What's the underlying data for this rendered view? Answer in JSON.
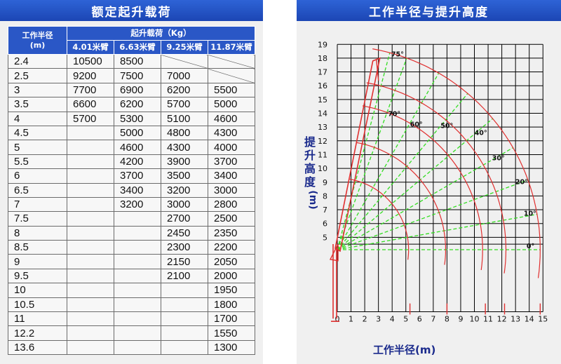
{
  "left_title": "额定起升载荷",
  "right_title": "工作半径与提升高度",
  "table": {
    "radius_header_line1": "工作半径",
    "radius_header_line2": "(m)",
    "load_header": "起升载荷（Kg）",
    "booms": [
      "4.01米臂",
      "6.63米臂",
      "9.25米臂",
      "11.87米臂"
    ],
    "rows": [
      {
        "r": "2.4",
        "v": [
          "10500",
          "8500",
          "",
          ""
        ]
      },
      {
        "r": "2.5",
        "v": [
          "9200",
          "7500",
          "7000",
          ""
        ]
      },
      {
        "r": "3",
        "v": [
          "7700",
          "6900",
          "6200",
          "5500"
        ]
      },
      {
        "r": "3.5",
        "v": [
          "6600",
          "6200",
          "5700",
          "5000"
        ]
      },
      {
        "r": "4",
        "v": [
          "5700",
          "5300",
          "5100",
          "4600"
        ]
      },
      {
        "r": "4.5",
        "v": [
          "",
          "5000",
          "4800",
          "4300"
        ]
      },
      {
        "r": "5",
        "v": [
          "",
          "4600",
          "4300",
          "4000"
        ]
      },
      {
        "r": "5.5",
        "v": [
          "",
          "4200",
          "3900",
          "3700"
        ]
      },
      {
        "r": "6",
        "v": [
          "",
          "3700",
          "3500",
          "3400"
        ]
      },
      {
        "r": "6.5",
        "v": [
          "",
          "3400",
          "3200",
          "3000"
        ]
      },
      {
        "r": "7",
        "v": [
          "",
          "3200",
          "3000",
          "2800"
        ]
      },
      {
        "r": "7.5",
        "v": [
          "",
          "",
          "2700",
          "2500"
        ]
      },
      {
        "r": "8",
        "v": [
          "",
          "",
          "2450",
          "2350"
        ]
      },
      {
        "r": "8.5",
        "v": [
          "",
          "",
          "2300",
          "2200"
        ]
      },
      {
        "r": "9",
        "v": [
          "",
          "",
          "2150",
          "2050"
        ]
      },
      {
        "r": "9.5",
        "v": [
          "",
          "",
          "2100",
          "2000"
        ]
      },
      {
        "r": "10",
        "v": [
          "",
          "",
          "",
          "1950"
        ]
      },
      {
        "r": "10.5",
        "v": [
          "",
          "",
          "",
          "1800"
        ]
      },
      {
        "r": "11",
        "v": [
          "",
          "",
          "",
          "1700"
        ]
      },
      {
        "r": "12.2",
        "v": [
          "",
          "",
          "",
          "1550"
        ]
      },
      {
        "r": "13.6",
        "v": [
          "",
          "",
          "",
          "1300"
        ]
      }
    ],
    "diagonal_cells": [
      [
        0,
        2
      ],
      [
        0,
        3
      ],
      [
        1,
        3
      ]
    ]
  },
  "chart_data": {
    "type": "line",
    "xlabel": "工作半径(m)",
    "ylabel": "提升高度(m)",
    "xlim": [
      0,
      15
    ],
    "ylim": [
      0,
      19
    ],
    "x_ticks": [
      "0",
      "1",
      "2",
      "3",
      "4",
      "5",
      "6",
      "7",
      "8",
      "9",
      "10",
      "11",
      "12",
      "13",
      "14",
      "15"
    ],
    "y_ticks": [
      "5",
      "6",
      "7",
      "8",
      "9",
      "10",
      "11",
      "12",
      "13",
      "14",
      "15",
      "16",
      "17",
      "18",
      "19"
    ],
    "grid": true,
    "boom_pivot": [
      0,
      4.1
    ],
    "angle_labels": [
      {
        "label": "0°",
        "angle": 0
      },
      {
        "label": "10°",
        "angle": 10
      },
      {
        "label": "20°",
        "angle": 20
      },
      {
        "label": "30°",
        "angle": 30
      },
      {
        "label": "40°",
        "angle": 40
      },
      {
        "label": "50°",
        "angle": 50
      },
      {
        "label": "60°",
        "angle": 60
      },
      {
        "label": "70°",
        "angle": 70
      },
      {
        "label": "75°",
        "angle": 75
      }
    ],
    "boom_reach_radii": [
      5.2,
      7.9,
      10.6,
      12.3,
      14.8
    ],
    "max_radius_marks": [
      5.3,
      8.0,
      10.8,
      12.2,
      14.8
    ],
    "colors": {
      "grid": "#000000",
      "radial_lines": "#33dd22",
      "arcs": "#e03030",
      "crane": "#e03030",
      "axis_title": "#1a2a8c"
    }
  }
}
